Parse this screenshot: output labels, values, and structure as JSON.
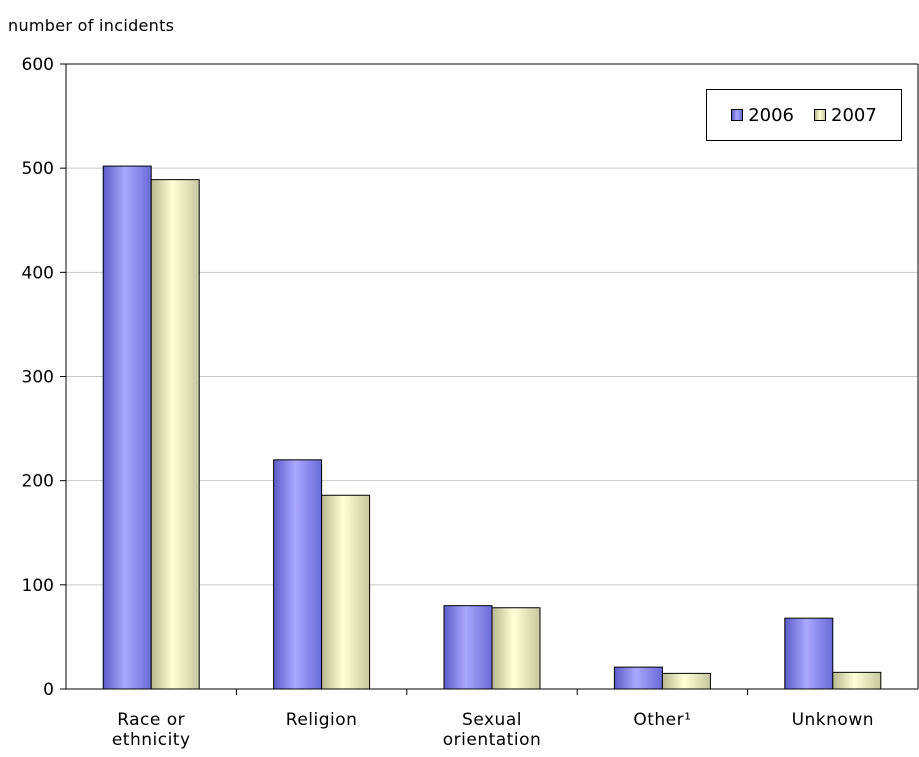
{
  "chart_data": {
    "type": "bar",
    "ylabel": "number of incidents",
    "xlabel": "",
    "categories": [
      "Race or\nethnicity",
      "Religion",
      "Sexual\norientation",
      "Other¹",
      "Unknown"
    ],
    "series": [
      {
        "name": "2006",
        "values": [
          502,
          220,
          80,
          21,
          68
        ],
        "color": "#9999ff"
      },
      {
        "name": "2007",
        "values": [
          489,
          186,
          78,
          15,
          16
        ],
        "color": "#ffffcc"
      }
    ],
    "ylim": [
      0,
      600
    ],
    "yticks": [
      0,
      100,
      200,
      300,
      400,
      500,
      600
    ],
    "grid": true,
    "legend": "top-right"
  }
}
